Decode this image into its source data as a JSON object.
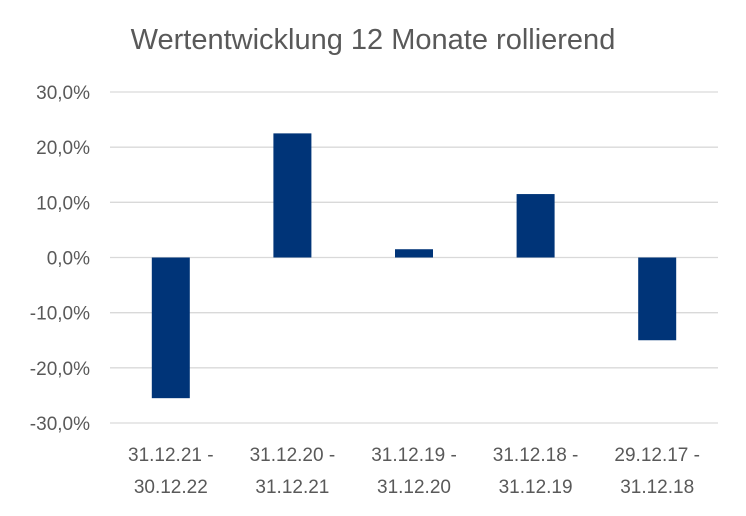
{
  "chart_data": {
    "type": "bar",
    "title": "Wertentwicklung 12 Monate rollierend",
    "categories": [
      [
        "31.12.21 -",
        "30.12.22"
      ],
      [
        "31.12.20 -",
        "31.12.21"
      ],
      [
        "31.12.19 -",
        "31.12.20"
      ],
      [
        "31.12.18 -",
        "31.12.19"
      ],
      [
        "29.12.17 -",
        "31.12.18"
      ]
    ],
    "values": [
      -25.5,
      22.5,
      1.5,
      11.5,
      -15.0
    ],
    "ylim": [
      -30,
      30
    ],
    "yticks": [
      "30,0%",
      "20,0%",
      "10,0%",
      "0,0%",
      "-10,0%",
      "-20,0%",
      "-30,0%"
    ],
    "ytick_values": [
      30,
      20,
      10,
      0,
      -10,
      -20,
      -30
    ],
    "grid": true,
    "colors": {
      "bar": "#003478",
      "grid": "#d9d9d9",
      "text": "#595959"
    }
  }
}
